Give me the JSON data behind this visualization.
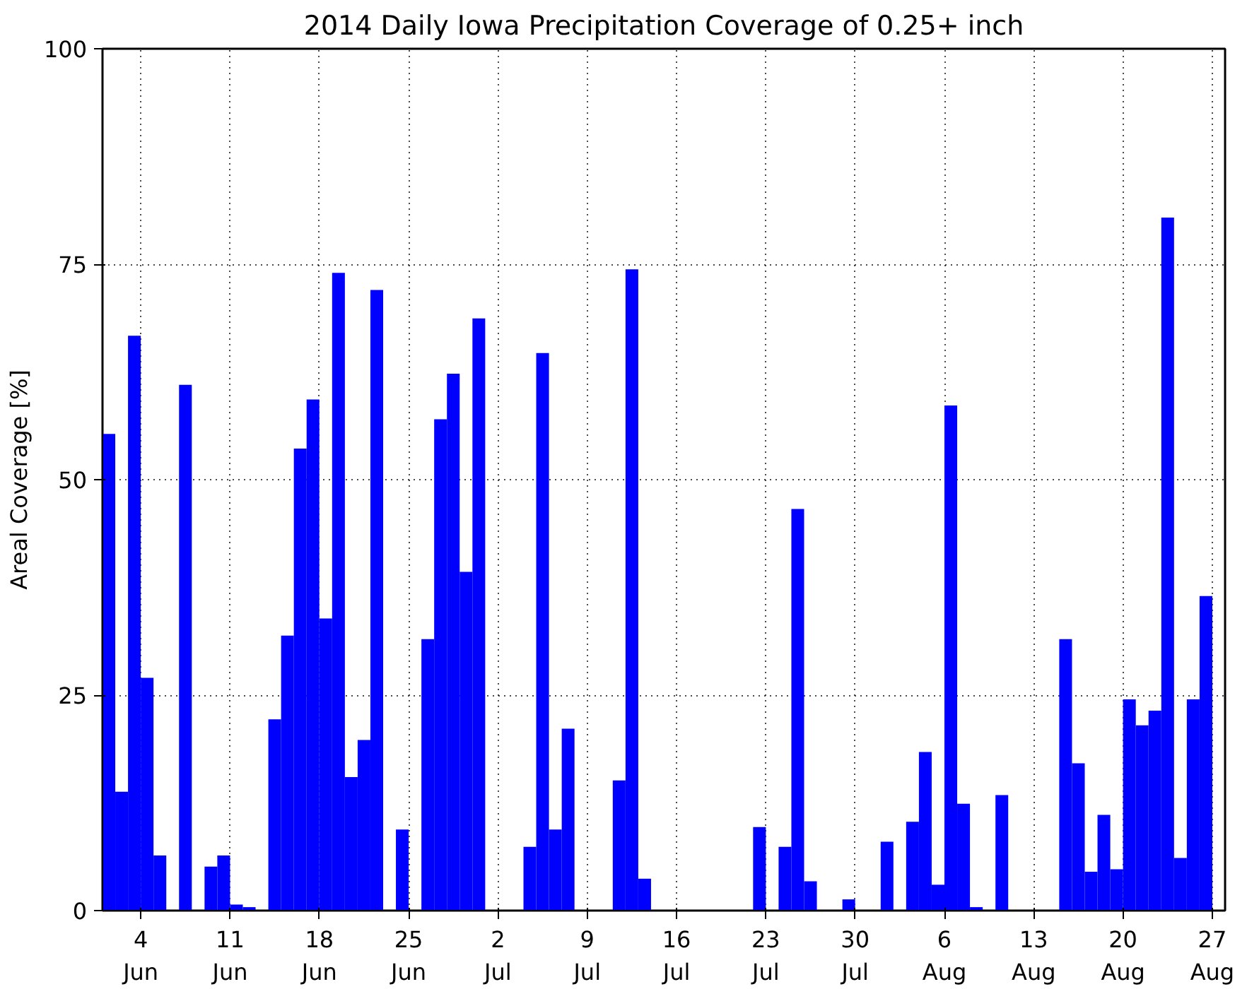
{
  "chart_data": {
    "type": "bar",
    "title": "2014 Daily Iowa Precipitation Coverage of 0.25+ inch",
    "ylabel": "Areal Coverage [%]",
    "x": [
      "2014-06-01T12:00",
      "2014-06-02T12:00",
      "2014-06-03T12:00",
      "2014-06-04T12:00",
      "2014-06-05T12:00",
      "2014-06-06T12:00",
      "2014-06-07T12:00",
      "2014-06-08T12:00",
      "2014-06-09T12:00",
      "2014-06-10T12:00",
      "2014-06-11T12:00",
      "2014-06-12T12:00",
      "2014-06-13T12:00",
      "2014-06-14T12:00",
      "2014-06-15T12:00",
      "2014-06-16T12:00",
      "2014-06-17T12:00",
      "2014-06-18T12:00",
      "2014-06-19T12:00",
      "2014-06-20T12:00",
      "2014-06-21T12:00",
      "2014-06-22T12:00",
      "2014-06-23T12:00",
      "2014-06-24T12:00",
      "2014-06-25T12:00",
      "2014-06-26T12:00",
      "2014-06-27T12:00",
      "2014-06-28T12:00",
      "2014-06-29T12:00",
      "2014-06-30T12:00",
      "2014-07-01T12:00",
      "2014-07-02T12:00",
      "2014-07-03T12:00",
      "2014-07-04T12:00",
      "2014-07-05T12:00",
      "2014-07-06T12:00",
      "2014-07-07T12:00",
      "2014-07-08T12:00",
      "2014-07-09T12:00",
      "2014-07-10T12:00",
      "2014-07-11T12:00",
      "2014-07-12T12:00",
      "2014-07-13T12:00",
      "2014-07-14T12:00",
      "2014-07-15T12:00",
      "2014-07-16T12:00",
      "2014-07-17T12:00",
      "2014-07-18T12:00",
      "2014-07-19T12:00",
      "2014-07-20T12:00",
      "2014-07-21T12:00",
      "2014-07-22T12:00",
      "2014-07-23T12:00",
      "2014-07-24T12:00",
      "2014-07-25T12:00",
      "2014-07-26T12:00",
      "2014-07-27T12:00",
      "2014-07-28T12:00",
      "2014-07-29T12:00",
      "2014-07-30T12:00",
      "2014-07-31T12:00",
      "2014-08-01T12:00",
      "2014-08-02T12:00",
      "2014-08-03T12:00",
      "2014-08-04T12:00",
      "2014-08-05T12:00",
      "2014-08-06T12:00",
      "2014-08-07T12:00",
      "2014-08-08T12:00",
      "2014-08-09T12:00",
      "2014-08-10T12:00",
      "2014-08-11T12:00",
      "2014-08-12T12:00",
      "2014-08-13T12:00",
      "2014-08-14T12:00",
      "2014-08-15T12:00",
      "2014-08-16T12:00",
      "2014-08-17T12:00",
      "2014-08-18T12:00",
      "2014-08-19T12:00",
      "2014-08-20T12:00",
      "2014-08-21T12:00",
      "2014-08-22T12:00",
      "2014-08-23T12:00",
      "2014-08-24T12:00",
      "2014-08-25T12:00",
      "2014-08-26T12:00",
      "2014-08-27T12:00"
    ],
    "values": [
      55.3,
      13.8,
      66.7,
      27.0,
      6.4,
      0,
      61.0,
      0,
      5.1,
      6.4,
      0.7,
      0.4,
      0,
      22.2,
      31.9,
      53.6,
      59.3,
      33.9,
      74.0,
      15.5,
      19.8,
      72.0,
      0,
      9.4,
      0,
      31.5,
      57.0,
      62.3,
      39.3,
      68.7,
      0,
      0,
      0,
      7.4,
      64.7,
      9.4,
      21.1,
      0,
      0,
      0,
      15.1,
      74.4,
      3.7,
      0,
      0,
      0,
      0,
      0,
      0,
      0,
      0,
      9.7,
      0,
      7.4,
      46.6,
      3.4,
      0,
      0,
      1.3,
      0,
      0,
      8.0,
      0,
      10.3,
      18.4,
      3.0,
      58.6,
      12.4,
      0.4,
      0,
      13.4,
      0,
      0,
      0,
      0,
      31.5,
      17.1,
      4.5,
      11.1,
      4.8,
      24.5,
      21.5,
      23.2,
      80.4,
      6.1,
      24.5,
      36.5,
      0
    ],
    "color": "#0000ff",
    "xlim": [
      "2014-06-01",
      "2014-08-28"
    ],
    "xticks": [
      {
        "value": "2014-06-04",
        "label": "4\nJun"
      },
      {
        "value": "2014-06-11",
        "label": "11\nJun"
      },
      {
        "value": "2014-06-18",
        "label": "18\nJun"
      },
      {
        "value": "2014-06-25",
        "label": "25\nJun"
      },
      {
        "value": "2014-07-02",
        "label": "2\nJul"
      },
      {
        "value": "2014-07-09",
        "label": "9\nJul"
      },
      {
        "value": "2014-07-16",
        "label": "16\nJul"
      },
      {
        "value": "2014-07-23",
        "label": "23\nJul"
      },
      {
        "value": "2014-07-30",
        "label": "30\nJul"
      },
      {
        "value": "2014-08-06",
        "label": "6\nAug"
      },
      {
        "value": "2014-08-13",
        "label": "13\nAug"
      },
      {
        "value": "2014-08-20",
        "label": "20\nAug"
      },
      {
        "value": "2014-08-27",
        "label": "27\nAug"
      }
    ],
    "ylim": [
      0,
      100
    ],
    "yticks": [
      0,
      25,
      50,
      75,
      100
    ],
    "grid": true
  }
}
